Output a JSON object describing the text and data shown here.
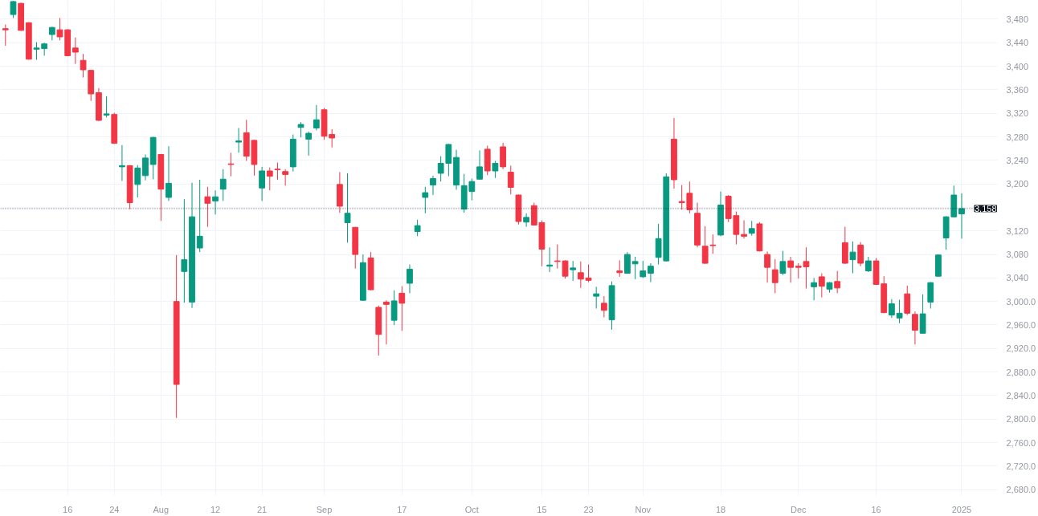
{
  "chart_data": {
    "type": "candlestick",
    "categories": [
      null,
      null,
      null,
      null,
      null,
      null,
      null,
      null,
      "16",
      null,
      null,
      null,
      null,
      null,
      "24",
      null,
      null,
      null,
      null,
      null,
      "Aug",
      null,
      null,
      null,
      null,
      null,
      null,
      "12",
      null,
      null,
      null,
      null,
      null,
      "21",
      null,
      null,
      null,
      null,
      null,
      null,
      null,
      "Sep",
      null,
      null,
      null,
      null,
      null,
      null,
      null,
      null,
      null,
      "17",
      null,
      null,
      null,
      null,
      null,
      null,
      null,
      null,
      "Oct",
      null,
      null,
      null,
      null,
      null,
      null,
      null,
      null,
      "15",
      null,
      null,
      null,
      null,
      null,
      "23",
      null,
      null,
      null,
      null,
      null,
      null,
      "Nov",
      null,
      null,
      null,
      null,
      null,
      null,
      null,
      null,
      null,
      "18",
      null,
      null,
      null,
      null,
      null,
      null,
      null,
      null,
      null,
      "Dec",
      null,
      null,
      null,
      null,
      null,
      null,
      null,
      null,
      null,
      "16",
      null,
      null,
      null,
      null,
      null,
      null,
      null,
      null,
      null,
      null,
      "2025"
    ],
    "ohlc": [
      [
        3464,
        3471,
        3435,
        3462
      ],
      [
        3488,
        3511,
        3482,
        3510
      ],
      [
        3507,
        3508,
        3460,
        3461
      ],
      [
        3474,
        3475,
        3411,
        3412
      ],
      [
        3429,
        3441,
        3411,
        3431
      ],
      [
        3430,
        3440,
        3418,
        3438
      ],
      [
        3454,
        3467,
        3444,
        3466
      ],
      [
        3462,
        3482,
        3444,
        3450
      ],
      [
        3462,
        3463,
        3417,
        3418
      ],
      [
        3431,
        3449,
        3404,
        3424
      ],
      [
        3410,
        3421,
        3381,
        3394
      ],
      [
        3393,
        3394,
        3341,
        3353
      ],
      [
        3355,
        3363,
        3307,
        3308
      ],
      [
        3317,
        3349,
        3313,
        3319
      ],
      [
        3318,
        3321,
        3268,
        3269
      ],
      [
        3229,
        3266,
        3205,
        3231
      ],
      [
        3231,
        3232,
        3157,
        3168
      ],
      [
        3199,
        3232,
        3177,
        3227
      ],
      [
        3214,
        3250,
        3206,
        3244
      ],
      [
        3233,
        3280,
        3208,
        3279
      ],
      [
        3250,
        3251,
        3137,
        3191
      ],
      [
        3177,
        3264,
        3171,
        3201
      ],
      [
        3000,
        3079,
        2802,
        2859
      ],
      [
        3051,
        3174,
        2998,
        3071
      ],
      [
        2999,
        3202,
        2989,
        3144
      ],
      [
        3091,
        3207,
        3084,
        3111
      ],
      [
        3178,
        3195,
        3127,
        3167
      ],
      [
        3171,
        3189,
        3148,
        3178
      ],
      [
        3191,
        3225,
        3171,
        3208
      ],
      [
        3234,
        3253,
        3213,
        3233
      ],
      [
        3271,
        3295,
        3253,
        3273
      ],
      [
        3287,
        3309,
        3239,
        3247
      ],
      [
        3274,
        3275,
        3214,
        3233
      ],
      [
        3193,
        3229,
        3171,
        3222
      ],
      [
        3222,
        3228,
        3189,
        3213
      ],
      [
        3225,
        3236,
        3207,
        3224
      ],
      [
        3221,
        3225,
        3197,
        3216
      ],
      [
        3229,
        3284,
        3221,
        3276
      ],
      [
        3296,
        3305,
        3279,
        3301
      ],
      [
        3276,
        3289,
        3248,
        3286
      ],
      [
        3295,
        3334,
        3291,
        3309
      ],
      [
        3326,
        3329,
        3275,
        3281
      ],
      [
        3284,
        3293,
        3262,
        3278
      ],
      [
        3199,
        3220,
        3151,
        3162
      ],
      [
        3134,
        3218,
        3100,
        3150
      ],
      [
        3126,
        3127,
        3056,
        3080
      ],
      [
        3002,
        3080,
        3001,
        3066
      ],
      [
        3074,
        3084,
        3019,
        3020
      ],
      [
        2990,
        2993,
        2908,
        2944
      ],
      [
        2999,
        3002,
        2927,
        2995
      ],
      [
        2968,
        3019,
        2960,
        3001
      ],
      [
        3014,
        3026,
        2950,
        2997
      ],
      [
        3031,
        3063,
        3014,
        3055
      ],
      [
        3119,
        3139,
        3111,
        3129
      ],
      [
        3177,
        3195,
        3150,
        3185
      ],
      [
        3198,
        3214,
        3181,
        3209
      ],
      [
        3218,
        3247,
        3204,
        3235
      ],
      [
        3235,
        3268,
        3213,
        3267
      ],
      [
        3198,
        3258,
        3190,
        3245
      ],
      [
        3157,
        3217,
        3151,
        3197
      ],
      [
        3187,
        3209,
        3172,
        3204
      ],
      [
        3208,
        3257,
        3207,
        3229
      ],
      [
        3259,
        3265,
        3215,
        3222
      ],
      [
        3222,
        3239,
        3210,
        3235
      ],
      [
        3263,
        3270,
        3225,
        3229
      ],
      [
        3220,
        3231,
        3182,
        3194
      ],
      [
        3181,
        3182,
        3131,
        3136
      ],
      [
        3135,
        3150,
        3127,
        3143
      ],
      [
        3163,
        3168,
        3129,
        3130
      ],
      [
        3134,
        3138,
        3060,
        3089
      ],
      [
        3060,
        3092,
        3050,
        3062
      ],
      [
        3069,
        3097,
        3056,
        3068
      ],
      [
        3069,
        3070,
        3039,
        3043
      ],
      [
        3054,
        3069,
        3035,
        3057
      ],
      [
        3049,
        3068,
        3023,
        3038
      ],
      [
        3040,
        3063,
        3033,
        3036
      ],
      [
        3009,
        3025,
        2988,
        3013
      ],
      [
        2997,
        3009,
        2973,
        2985
      ],
      [
        2969,
        3034,
        2952,
        3027
      ],
      [
        3052,
        3070,
        3042,
        3049
      ],
      [
        3048,
        3084,
        3047,
        3080
      ],
      [
        3064,
        3076,
        3038,
        3068
      ],
      [
        3042,
        3069,
        3040,
        3052
      ],
      [
        3048,
        3065,
        3033,
        3060
      ],
      [
        3075,
        3132,
        3063,
        3107
      ],
      [
        3069,
        3218,
        3068,
        3212
      ],
      [
        3276,
        3312,
        3192,
        3207
      ],
      [
        3170,
        3198,
        3156,
        3168
      ],
      [
        3184,
        3204,
        3150,
        3156
      ],
      [
        3150,
        3168,
        3092,
        3096
      ],
      [
        3094,
        3128,
        3064,
        3065
      ],
      [
        3096,
        3114,
        3081,
        3095
      ],
      [
        3113,
        3187,
        3111,
        3164
      ],
      [
        3179,
        3181,
        3135,
        3141
      ],
      [
        3146,
        3153,
        3097,
        3114
      ],
      [
        3114,
        3138,
        3107,
        3111
      ],
      [
        3116,
        3137,
        3112,
        3124
      ],
      [
        3132,
        3135,
        3085,
        3086
      ],
      [
        3080,
        3085,
        3032,
        3058
      ],
      [
        3054,
        3072,
        3014,
        3032
      ],
      [
        3048,
        3086,
        3045,
        3068
      ],
      [
        3069,
        3076,
        3032,
        3058
      ],
      [
        3060,
        3065,
        3039,
        3058
      ],
      [
        3068,
        3092,
        3022,
        3059
      ],
      [
        3025,
        3040,
        3002,
        3032
      ],
      [
        3042,
        3048,
        3007,
        3026
      ],
      [
        3021,
        3033,
        3015,
        3032
      ],
      [
        3034,
        3052,
        3014,
        3023
      ],
      [
        3100,
        3127,
        3064,
        3065
      ],
      [
        3071,
        3102,
        3048,
        3084
      ],
      [
        3096,
        3101,
        3060,
        3065
      ],
      [
        3052,
        3076,
        3050,
        3069
      ],
      [
        3069,
        3074,
        3028,
        3029
      ],
      [
        3030,
        3043,
        2980,
        2981
      ],
      [
        2977,
        3004,
        2972,
        2996
      ],
      [
        2972,
        3003,
        2963,
        2980
      ],
      [
        3013,
        3027,
        2977,
        2980
      ],
      [
        2978,
        2983,
        2927,
        2951
      ],
      [
        2946,
        3012,
        2945,
        2979
      ],
      [
        2999,
        3033,
        2988,
        3032
      ],
      [
        3043,
        3080,
        3042,
        3079
      ],
      [
        3108,
        3145,
        3088,
        3144
      ],
      [
        3144,
        3197,
        3143,
        3181
      ],
      [
        3149,
        3184,
        3107,
        3158
      ]
    ],
    "colors": [
      "#f23645",
      "#089981",
      "#f23645",
      "#f23645",
      "#089981",
      "#089981",
      "#089981",
      "#f23645",
      "#f23645",
      "#f23645",
      "#f23645",
      "#f23645",
      "#f23645",
      "#089981",
      "#f23645",
      "#089981",
      "#f23645",
      "#089981",
      "#089981",
      "#089981",
      "#f23645",
      "#089981",
      "#f23645",
      "#089981",
      "#089981",
      "#089981",
      "#f23645",
      "#089981",
      "#089981",
      "#f23645",
      "#089981",
      "#f23645",
      "#f23645",
      "#089981",
      "#f23645",
      "#f23645",
      "#f23645",
      "#089981",
      "#089981",
      "#089981",
      "#089981",
      "#f23645",
      "#f23645",
      "#f23645",
      "#089981",
      "#f23645",
      "#089981",
      "#f23645",
      "#f23645",
      "#f23645",
      "#089981",
      "#f23645",
      "#089981",
      "#089981",
      "#089981",
      "#089981",
      "#089981",
      "#089981",
      "#089981",
      "#089981",
      "#089981",
      "#089981",
      "#f23645",
      "#089981",
      "#f23645",
      "#f23645",
      "#f23645",
      "#089981",
      "#f23645",
      "#f23645",
      "#089981",
      "#f23645",
      "#f23645",
      "#089981",
      "#f23645",
      "#f23645",
      "#089981",
      "#f23645",
      "#089981",
      "#f23645",
      "#089981",
      "#089981",
      "#089981",
      "#089981",
      "#089981",
      "#089981",
      "#f23645",
      "#f23645",
      "#f23645",
      "#f23645",
      "#f23645",
      "#f23645",
      "#089981",
      "#f23645",
      "#f23645",
      "#f23645",
      "#089981",
      "#f23645",
      "#f23645",
      "#f23645",
      "#089981",
      "#f23645",
      "#f23645",
      "#f23645",
      "#089981",
      "#f23645",
      "#089981",
      "#f23645",
      "#f23645",
      "#089981",
      "#f23645",
      "#089981",
      "#f23645",
      "#f23645",
      "#089981",
      "#089981",
      "#f23645",
      "#f23645",
      "#089981",
      "#089981",
      "#089981",
      "#089981",
      "#089981",
      "#089981"
    ],
    "ylim": [
      2670,
      3512
    ],
    "yticks": [
      {
        "value": 2680,
        "label": "2,680.0"
      },
      {
        "value": 2720,
        "label": "2,720.0"
      },
      {
        "value": 2760,
        "label": "2,760.0"
      },
      {
        "value": 2800,
        "label": "2,800.0"
      },
      {
        "value": 2840,
        "label": "2,840.0"
      },
      {
        "value": 2880,
        "label": "2,880.0"
      },
      {
        "value": 2920,
        "label": "2,920.0"
      },
      {
        "value": 2960,
        "label": "2,960.0"
      },
      {
        "value": 3000,
        "label": "3,000.0"
      },
      {
        "value": 3040,
        "label": "3,040"
      },
      {
        "value": 3080,
        "label": "3,080"
      },
      {
        "value": 3120,
        "label": "3,120"
      },
      {
        "value": 3160,
        "label": null
      },
      {
        "value": 3200,
        "label": "3,200"
      },
      {
        "value": 3240,
        "label": "3,240"
      },
      {
        "value": 3280,
        "label": "3,280"
      },
      {
        "value": 3320,
        "label": "3,320"
      },
      {
        "value": 3360,
        "label": "3,360"
      },
      {
        "value": 3400,
        "label": "3,400"
      },
      {
        "value": 3440,
        "label": "3,440"
      },
      {
        "value": 3480,
        "label": "3,480"
      }
    ],
    "grid": true,
    "ref_lines": [
      {
        "axis": "y",
        "value": 3158,
        "label": "3,158",
        "color": "#131722",
        "line_style": "dotted"
      }
    ]
  }
}
